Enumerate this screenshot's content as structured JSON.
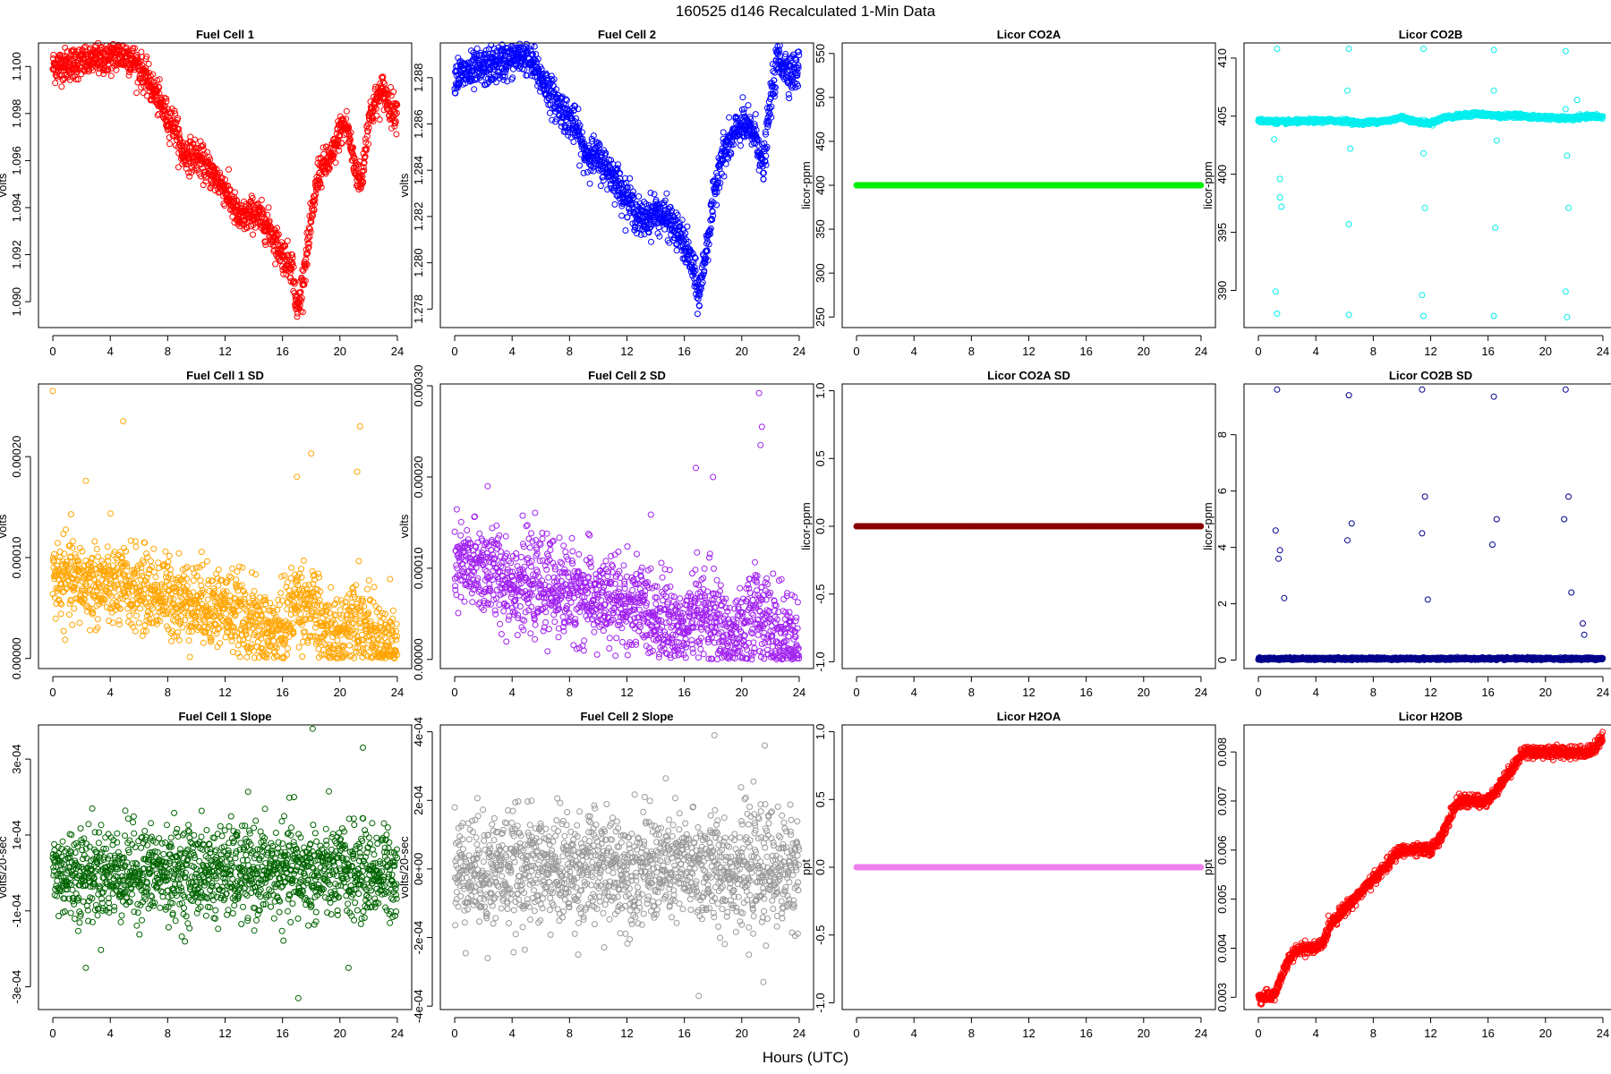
{
  "figure": {
    "title": "160525   d146   Recalculated 1-Min Data",
    "xlabel": "Hours (UTC)"
  },
  "chart_data": [
    {
      "type": "scatter",
      "title": "Fuel Cell 1",
      "xlabel": "",
      "ylabel": "volts",
      "color": "#ff0000",
      "xlim": [
        -1,
        25
      ],
      "ylim": [
        1.0889,
        1.101
      ],
      "xticks": [
        "0",
        "4",
        "8",
        "12",
        "16",
        "20",
        "24"
      ],
      "yticks": [
        "1.090",
        "1.092",
        "1.094",
        "1.096",
        "1.098",
        "1.100"
      ],
      "profile": {
        "x": [
          0,
          1,
          2,
          3,
          4,
          5,
          5.5,
          6,
          7,
          8,
          8.5,
          9,
          10,
          11,
          12,
          13,
          14,
          15,
          16,
          16.7,
          17,
          17.3,
          17.8,
          18.5,
          19.5,
          20,
          20.5,
          21,
          21.5,
          22,
          22.5,
          23,
          23.5,
          24
        ],
        "y": [
          1.1,
          1.1001,
          1.1002,
          1.1003,
          1.1004,
          1.1005,
          1.1003,
          1.1,
          1.099,
          1.0978,
          1.0975,
          1.0963,
          1.0962,
          1.0955,
          1.0948,
          1.0935,
          1.0938,
          1.0932,
          1.092,
          1.0915,
          1.0895,
          1.0905,
          1.0925,
          1.0955,
          1.0962,
          1.0973,
          1.0975,
          1.0958,
          1.095,
          1.0978,
          1.0985,
          1.099,
          1.0983,
          1.098
        ]
      },
      "noise": 0.00035
    },
    {
      "type": "scatter",
      "title": "Fuel Cell 2",
      "xlabel": "",
      "ylabel": "volts",
      "color": "#0000ff",
      "xlim": [
        -1,
        25
      ],
      "ylim": [
        1.2772,
        1.2895
      ],
      "xticks": [
        "0",
        "4",
        "8",
        "12",
        "16",
        "20",
        "24"
      ],
      "yticks": [
        "1.278",
        "1.280",
        "1.282",
        "1.284",
        "1.286",
        "1.288"
      ],
      "profile": {
        "x": [
          0,
          1,
          2,
          3,
          4,
          5,
          6,
          7,
          8,
          8.5,
          9,
          10,
          11,
          12,
          13,
          14,
          15,
          16,
          16.5,
          17,
          17.5,
          18,
          18.5,
          19,
          20,
          21,
          21.5,
          22,
          22.5,
          23,
          23.5,
          24
        ],
        "y": [
          1.2881,
          1.2882,
          1.2884,
          1.2886,
          1.2888,
          1.289,
          1.288,
          1.287,
          1.2862,
          1.2858,
          1.2848,
          1.2845,
          1.2838,
          1.2828,
          1.2818,
          1.2822,
          1.2818,
          1.2808,
          1.28,
          1.2785,
          1.2805,
          1.2825,
          1.2845,
          1.285,
          1.286,
          1.2855,
          1.284,
          1.287,
          1.2888,
          1.2885,
          1.2882,
          1.2884
        ]
      },
      "noise": 0.0004
    },
    {
      "type": "scatter",
      "title": "Licor CO2A",
      "xlabel": "",
      "ylabel": "licor-ppm",
      "color": "#00ee00",
      "xlim": [
        -1,
        25
      ],
      "ylim": [
        238,
        562
      ],
      "xticks": [
        "0",
        "4",
        "8",
        "12",
        "16",
        "20",
        "24"
      ],
      "yticks": [
        "250",
        "300",
        "350",
        "400",
        "450",
        "500",
        "550"
      ],
      "constant": 400
    },
    {
      "type": "scatter",
      "title": "Licor CO2B",
      "xlabel": "",
      "ylabel": "licor-ppm",
      "color": "#00eeee",
      "xlim": [
        -1,
        25
      ],
      "ylim": [
        386.8,
        411.3
      ],
      "xticks": [
        "0",
        "4",
        "8",
        "12",
        "16",
        "20",
        "24"
      ],
      "yticks": [
        "390",
        "395",
        "400",
        "405",
        "410"
      ],
      "profile": {
        "x": [
          0,
          2,
          4,
          6,
          7,
          8,
          9,
          10,
          11,
          12,
          13,
          14,
          15,
          16,
          17,
          18,
          19,
          20,
          21,
          22,
          23,
          24
        ],
        "y": [
          404.6,
          404.5,
          404.6,
          404.6,
          404.4,
          404.5,
          404.6,
          404.9,
          404.5,
          404.4,
          404.9,
          405.0,
          405.2,
          405.1,
          405.0,
          405.1,
          404.9,
          404.9,
          404.8,
          404.8,
          405.0,
          404.9
        ]
      },
      "noise": 0.08,
      "outliers": [
        [
          1.3,
          410.8
        ],
        [
          1.3,
          388.0
        ],
        [
          1.5,
          398.0
        ],
        [
          1.6,
          397.2
        ],
        [
          1.5,
          399.6
        ],
        [
          1.1,
          403.0
        ],
        [
          1.2,
          389.9
        ],
        [
          6.3,
          410.8
        ],
        [
          6.3,
          387.9
        ],
        [
          6.3,
          395.7
        ],
        [
          6.2,
          407.2
        ],
        [
          6.4,
          402.2
        ],
        [
          11.5,
          410.8
        ],
        [
          11.5,
          387.8
        ],
        [
          11.6,
          397.1
        ],
        [
          11.4,
          389.6
        ],
        [
          11.5,
          401.8
        ],
        [
          16.4,
          410.7
        ],
        [
          16.4,
          387.8
        ],
        [
          16.5,
          395.4
        ],
        [
          16.4,
          407.2
        ],
        [
          16.6,
          402.9
        ],
        [
          21.4,
          410.6
        ],
        [
          21.5,
          387.7
        ],
        [
          21.6,
          397.1
        ],
        [
          21.4,
          389.9
        ],
        [
          21.5,
          401.6
        ],
        [
          21.4,
          405.6
        ],
        [
          22.2,
          406.4
        ]
      ]
    },
    {
      "type": "scatter",
      "title": "Fuel Cell 1 SD",
      "xlabel": "",
      "ylabel": "volts",
      "color": "#ffa500",
      "xlim": [
        -1,
        25
      ],
      "ylim": [
        -1e-05,
        0.000272
      ],
      "xticks": [
        "0",
        "4",
        "8",
        "12",
        "16",
        "20",
        "24"
      ],
      "yticks": [
        "0.00000",
        "0.00010",
        "0.00020"
      ],
      "profile": {
        "x": [
          0,
          2,
          4,
          6,
          8,
          10,
          12,
          14,
          15,
          16,
          17,
          18,
          19,
          20,
          21,
          22,
          23,
          24
        ],
        "y": [
          8e-05,
          7.5e-05,
          7.2e-05,
          6.8e-05,
          6.2e-05,
          5.5e-05,
          5e-05,
          3.5e-05,
          2.5e-05,
          3e-05,
          6e-05,
          5e-05,
          2.5e-05,
          2e-05,
          5e-05,
          2.5e-05,
          1.5e-05,
          1e-05
        ]
      },
      "noise": 2e-05,
      "outliers": [
        [
          0.0,
          0.000265
        ],
        [
          4.9,
          0.000235
        ],
        [
          21.4,
          0.00023
        ],
        [
          18.0,
          0.000203
        ],
        [
          17.0,
          0.00018
        ],
        [
          2.3,
          0.000176
        ],
        [
          21.2,
          0.000185
        ]
      ]
    },
    {
      "type": "scatter",
      "title": "Fuel Cell 2 SD",
      "xlabel": "",
      "ylabel": "volts",
      "color": "#a020f0",
      "xlim": [
        -1,
        25
      ],
      "ylim": [
        -1e-05,
        0.000302
      ],
      "xticks": [
        "0",
        "4",
        "8",
        "12",
        "16",
        "20",
        "24"
      ],
      "yticks": [
        "0.00000",
        "0.00010",
        "0.00020",
        "0.00030"
      ],
      "profile": {
        "x": [
          0,
          2,
          4,
          6,
          8,
          10,
          12,
          14,
          15,
          16,
          17,
          18,
          19,
          20,
          21,
          22,
          23,
          24
        ],
        "y": [
          0.0001,
          0.0001,
          8.5e-05,
          8e-05,
          7.5e-05,
          6.5e-05,
          6e-05,
          5e-05,
          4e-05,
          3e-05,
          5.5e-05,
          4.5e-05,
          2.5e-05,
          2e-05,
          6e-05,
          3.5e-05,
          2e-05,
          1e-05
        ]
      },
      "noise": 2.5e-05,
      "outliers": [
        [
          21.2,
          0.000292
        ],
        [
          21.4,
          0.000255
        ],
        [
          18.0,
          0.0002
        ],
        [
          16.8,
          0.00021
        ],
        [
          2.3,
          0.00019
        ],
        [
          21.3,
          0.000235
        ]
      ]
    },
    {
      "type": "scatter",
      "title": "Licor CO2A SD",
      "xlabel": "",
      "ylabel": "licor-ppm",
      "color": "#8b0000",
      "xlim": [
        -1,
        25
      ],
      "ylim": [
        -1.05,
        1.05
      ],
      "xticks": [
        "0",
        "4",
        "8",
        "12",
        "16",
        "20",
        "24"
      ],
      "yticks": [
        "-1.0",
        "-0.5",
        "0.0",
        "0.5",
        "1.0"
      ],
      "constant": 0
    },
    {
      "type": "scatter",
      "title": "Licor CO2B SD",
      "xlabel": "",
      "ylabel": "licor-ppm",
      "color": "#00008b",
      "xlim": [
        -1,
        25
      ],
      "ylim": [
        -0.3,
        9.8
      ],
      "xticks": [
        "0",
        "4",
        "8",
        "12",
        "16",
        "20",
        "24"
      ],
      "yticks": [
        "0",
        "2",
        "4",
        "6",
        "8"
      ],
      "profile": {
        "x": [
          0,
          24
        ],
        "y": [
          0.05,
          0.05
        ]
      },
      "noise": 0.02,
      "outliers": [
        [
          1.3,
          9.6
        ],
        [
          6.3,
          9.4
        ],
        [
          11.4,
          9.6
        ],
        [
          16.4,
          9.35
        ],
        [
          21.4,
          9.6
        ],
        [
          1.2,
          4.6
        ],
        [
          1.5,
          3.9
        ],
        [
          1.4,
          3.6
        ],
        [
          1.8,
          2.2
        ],
        [
          6.2,
          4.25
        ],
        [
          6.5,
          4.85
        ],
        [
          11.4,
          4.5
        ],
        [
          11.6,
          5.8
        ],
        [
          11.8,
          2.15
        ],
        [
          16.3,
          4.1
        ],
        [
          16.6,
          5.0
        ],
        [
          21.3,
          5.0
        ],
        [
          21.6,
          5.8
        ],
        [
          21.8,
          2.4
        ],
        [
          22.6,
          1.3
        ],
        [
          22.7,
          0.9
        ]
      ]
    },
    {
      "type": "scatter",
      "title": "Fuel Cell 1 Slope",
      "xlabel": "",
      "ylabel": "volts/20-sec",
      "color": "#006400",
      "xlim": [
        -1,
        25
      ],
      "ylim": [
        -0.00036,
        0.00039
      ],
      "xticks": [
        "0",
        "4",
        "8",
        "12",
        "16",
        "20",
        "24"
      ],
      "yticks": [
        "-3e-04",
        "-1e-04",
        "1e-04",
        "3e-04"
      ],
      "profile": {
        "x": [
          0,
          24
        ],
        "y": [
          0.0,
          0.0
        ]
      },
      "noise": 6e-05,
      "outliers": [
        [
          18.1,
          0.00038
        ],
        [
          21.6,
          0.00033
        ],
        [
          17.1,
          -0.00033
        ],
        [
          2.3,
          -0.00025
        ],
        [
          16.8,
          0.0002
        ],
        [
          20.6,
          -0.00025
        ]
      ]
    },
    {
      "type": "scatter",
      "title": "Fuel Cell 2 Slope",
      "xlabel": "",
      "ylabel": "volts/20-sec",
      "color": "#999999",
      "xlim": [
        -1,
        25
      ],
      "ylim": [
        -0.00041,
        0.00042
      ],
      "xticks": [
        "0",
        "4",
        "8",
        "12",
        "16",
        "20",
        "24"
      ],
      "yticks": [
        "-4e-04",
        "-2e-04",
        "0e+00",
        "2e-04",
        "4e-04"
      ],
      "profile": {
        "x": [
          0,
          24
        ],
        "y": [
          0.0,
          0.0
        ]
      },
      "noise": 8e-05,
      "outliers": [
        [
          18.1,
          0.00039
        ],
        [
          21.6,
          0.00036
        ],
        [
          17.0,
          -0.00037
        ],
        [
          2.3,
          -0.00026
        ],
        [
          21.5,
          -0.00033
        ],
        [
          20.5,
          -0.00025
        ]
      ]
    },
    {
      "type": "scatter",
      "title": "Licor H2OA",
      "xlabel": "",
      "ylabel": "ppt",
      "color": "#ee82ee",
      "xlim": [
        -1,
        25
      ],
      "ylim": [
        -1.05,
        1.05
      ],
      "xticks": [
        "0",
        "4",
        "8",
        "12",
        "16",
        "20",
        "24"
      ],
      "yticks": [
        "-1.0",
        "-0.5",
        "0.0",
        "0.5",
        "1.0"
      ],
      "constant": 0
    },
    {
      "type": "scatter",
      "title": "Licor H2OB",
      "xlabel": "",
      "ylabel": "ppt",
      "color": "#ff0000",
      "xlim": [
        -1,
        25
      ],
      "ylim": [
        0.00275,
        0.00855
      ],
      "xticks": [
        "0",
        "4",
        "8",
        "12",
        "16",
        "20",
        "24"
      ],
      "yticks": [
        "0.003",
        "0.004",
        "0.005",
        "0.006",
        "0.007",
        "0.008"
      ],
      "profile": {
        "x": [
          0,
          0.8,
          1.2,
          2,
          2.5,
          3,
          4,
          4.5,
          5,
          6,
          7,
          8,
          9,
          9.5,
          10,
          11,
          11.5,
          12,
          12.5,
          13,
          13.5,
          14,
          15,
          16,
          16.5,
          17,
          17.5,
          18,
          18.5,
          19,
          20,
          21,
          22,
          23,
          23.5,
          24
        ],
        "y": [
          0.003,
          0.003,
          0.0031,
          0.0037,
          0.0039,
          0.004,
          0.004,
          0.0041,
          0.0045,
          0.0048,
          0.0051,
          0.0054,
          0.0057,
          0.0059,
          0.006,
          0.006,
          0.006,
          0.006,
          0.0062,
          0.0064,
          0.0068,
          0.007,
          0.007,
          0.007,
          0.0072,
          0.0074,
          0.0076,
          0.0078,
          0.008,
          0.008,
          0.008,
          0.008,
          0.008,
          0.008,
          0.0081,
          0.0083
        ]
      },
      "noise": 6e-05
    }
  ]
}
